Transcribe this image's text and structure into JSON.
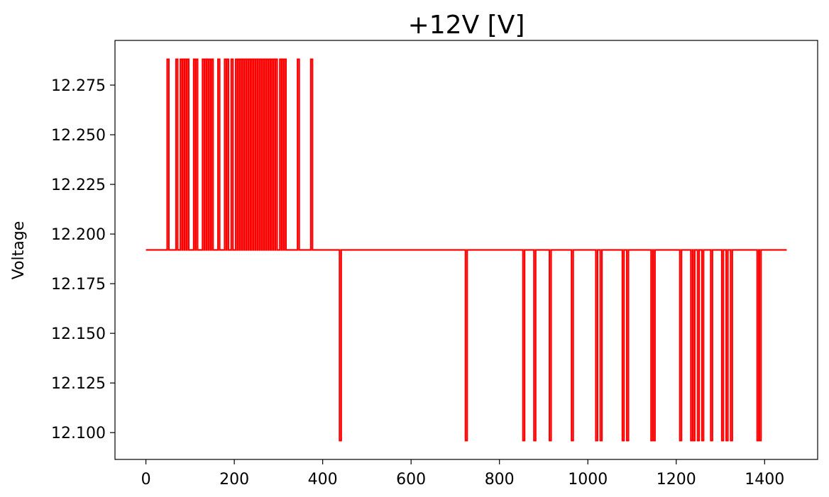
{
  "chart_data": {
    "type": "line",
    "title": "+12V [V]",
    "xlabel": "",
    "ylabel": "Voltage",
    "xlim": [
      -70,
      1520
    ],
    "ylim": [
      12.0865,
      12.2975
    ],
    "x_ticks": [
      0,
      200,
      400,
      600,
      800,
      1000,
      1200,
      1400
    ],
    "x_tick_labels": [
      "0",
      "200",
      "400",
      "600",
      "800",
      "1000",
      "1200",
      "1400"
    ],
    "y_ticks": [
      12.1,
      12.125,
      12.15,
      12.175,
      12.2,
      12.225,
      12.25,
      12.275
    ],
    "y_tick_labels": [
      "12.100",
      "12.125",
      "12.150",
      "12.175",
      "12.200",
      "12.225",
      "12.250",
      "12.275"
    ],
    "grid": false,
    "legend": "none",
    "series": [
      {
        "color": "#ff0000",
        "baseline": 12.192,
        "x_start": 0,
        "x_end": 1450,
        "spikes_high": {
          "value": 12.288,
          "x": [
            50,
            70,
            80,
            85,
            90,
            95,
            110,
            115,
            130,
            135,
            140,
            145,
            150,
            165,
            180,
            185,
            195,
            205,
            210,
            215,
            220,
            225,
            230,
            235,
            240,
            245,
            250,
            255,
            260,
            265,
            270,
            275,
            280,
            285,
            290,
            295,
            305,
            310,
            315,
            345,
            375
          ]
        },
        "spikes_low": {
          "value": 12.096,
          "x": [
            440,
            725,
            855,
            880,
            915,
            965,
            1020,
            1030,
            1080,
            1090,
            1145,
            1150,
            1210,
            1235,
            1240,
            1250,
            1260,
            1280,
            1305,
            1315,
            1325,
            1385,
            1390
          ]
        }
      }
    ]
  }
}
